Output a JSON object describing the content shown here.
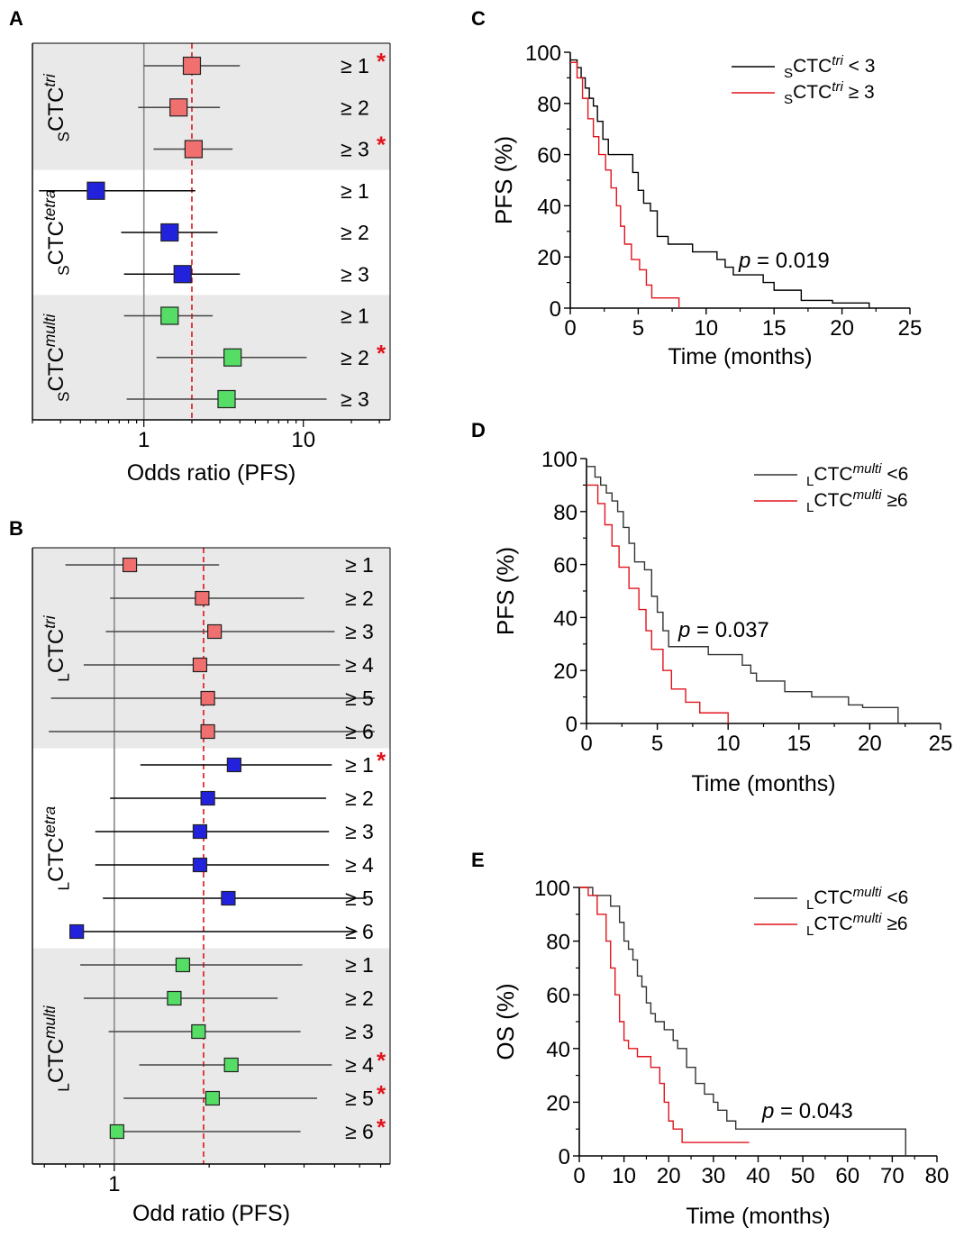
{
  "chart_data": [
    {
      "panel": "A",
      "type": "forest",
      "xlabel": "Odds ratio (PFS)",
      "xscale": "log",
      "xlim": [
        0.2,
        35
      ],
      "xticks": [
        "1",
        "10"
      ],
      "reference_line": 1,
      "pooled_line": 2.0,
      "groups": [
        {
          "prefix": "S",
          "name": "CTC",
          "sup": "tri",
          "color": "#f07070",
          "shaded": true,
          "rows": [
            {
              "threshold": "≥ 1",
              "or": 2.0,
              "low": 1.0,
              "high": 4.0,
              "significant": true
            },
            {
              "threshold": "≥ 2",
              "or": 1.65,
              "low": 0.92,
              "high": 3.0,
              "significant": false
            },
            {
              "threshold": "≥ 3",
              "or": 2.05,
              "low": 1.15,
              "high": 3.6,
              "significant": true
            }
          ]
        },
        {
          "prefix": "S",
          "name": "CTC",
          "sup": "tetra",
          "color": "#2222dd",
          "shaded": false,
          "rows": [
            {
              "threshold": "≥ 1",
              "or": 0.5,
              "low": 0.22,
              "high": 2.1,
              "significant": false
            },
            {
              "threshold": "≥ 2",
              "or": 1.45,
              "low": 0.72,
              "high": 2.9,
              "significant": false
            },
            {
              "threshold": "≥ 3",
              "or": 1.75,
              "low": 0.75,
              "high": 4.0,
              "significant": false
            }
          ]
        },
        {
          "prefix": "S",
          "name": "CTC",
          "sup": "multi",
          "color": "#55dd66",
          "shaded": true,
          "rows": [
            {
              "threshold": "≥ 1",
              "or": 1.45,
              "low": 0.75,
              "high": 2.7,
              "significant": false
            },
            {
              "threshold": "≥ 2",
              "or": 3.6,
              "low": 1.2,
              "high": 10.5,
              "significant": true
            },
            {
              "threshold": "≥ 3",
              "or": 3.3,
              "low": 0.78,
              "high": 14.0,
              "significant": false
            }
          ]
        }
      ]
    },
    {
      "panel": "B",
      "type": "forest",
      "xlabel": "Odd ratio (PFS)",
      "xscale": "log",
      "xlim": [
        0.55,
        7.5
      ],
      "xticks": [
        "1"
      ],
      "reference_line": 1,
      "pooled_line": 1.92,
      "groups": [
        {
          "prefix": "L",
          "name": "CTC",
          "sup": "tri",
          "color": "#f07070",
          "shaded": true,
          "rows": [
            {
              "threshold": "≥ 1",
              "or": 1.12,
              "low": 0.7,
              "high": 2.15,
              "significant": false
            },
            {
              "threshold": "≥ 2",
              "or": 1.9,
              "low": 0.97,
              "high": 4.0,
              "significant": false
            },
            {
              "threshold": "≥ 3",
              "or": 2.08,
              "low": 0.94,
              "high": 5.0,
              "significant": false
            },
            {
              "threshold": "≥ 4",
              "or": 1.87,
              "low": 0.8,
              "high": 5.2,
              "significant": false
            },
            {
              "threshold": "≥ 5",
              "or": 1.98,
              "low": 0.63,
              "high": 6.7,
              "significant": false
            },
            {
              "threshold": "≥ 6",
              "or": 1.98,
              "low": 0.62,
              "high": 6.7,
              "significant": false
            }
          ]
        },
        {
          "prefix": "L",
          "name": "CTC",
          "sup": "tetra",
          "color": "#2222dd",
          "shaded": false,
          "rows": [
            {
              "threshold": "≥ 1",
              "or": 2.4,
              "low": 1.21,
              "high": 4.9,
              "significant": true
            },
            {
              "threshold": "≥ 2",
              "or": 1.98,
              "low": 0.97,
              "high": 4.7,
              "significant": false
            },
            {
              "threshold": "≥ 3",
              "or": 1.87,
              "low": 0.87,
              "high": 4.8,
              "significant": false
            },
            {
              "threshold": "≥ 4",
              "or": 1.87,
              "low": 0.87,
              "high": 4.8,
              "significant": false
            },
            {
              "threshold": "≥ 5",
              "or": 2.3,
              "low": 0.92,
              "high": 6.3,
              "significant": false
            },
            {
              "threshold": "≥ 6",
              "or": 0.76,
              "low": 0.76,
              "high": 5.9,
              "significant": false
            }
          ]
        },
        {
          "prefix": "L",
          "name": "CTC",
          "sup": "multi",
          "color": "#55dd66",
          "shaded": true,
          "rows": [
            {
              "threshold": "≥ 1",
              "or": 1.65,
              "low": 0.78,
              "high": 3.95,
              "significant": false
            },
            {
              "threshold": "≥ 2",
              "or": 1.55,
              "low": 0.8,
              "high": 3.3,
              "significant": false
            },
            {
              "threshold": "≥ 3",
              "or": 1.85,
              "low": 0.96,
              "high": 3.9,
              "significant": false
            },
            {
              "threshold": "≥ 4",
              "or": 2.35,
              "low": 1.2,
              "high": 4.9,
              "significant": true
            },
            {
              "threshold": "≥ 5",
              "or": 2.05,
              "low": 1.07,
              "high": 4.4,
              "significant": true
            },
            {
              "threshold": "≥ 6",
              "or": 1.02,
              "low": 1.02,
              "high": 3.9,
              "significant": true
            }
          ]
        }
      ]
    },
    {
      "panel": "C",
      "type": "line",
      "subtype": "kaplan-meier",
      "xlabel": "Time  (months)",
      "ylabel": "PFS (%)",
      "xlim": [
        0,
        25
      ],
      "ylim": [
        0,
        100
      ],
      "xticks": [
        0,
        5,
        10,
        15,
        20,
        25
      ],
      "yticks": [
        0,
        20,
        40,
        60,
        80,
        100
      ],
      "annotation": {
        "p": "p",
        "value": " = 0.019"
      },
      "series": [
        {
          "prefix": "S",
          "name": "CTC",
          "sup": "tri",
          "rel": " < 3",
          "color": "#000000",
          "x": [
            0,
            0.5,
            0.5,
            0.8,
            0.8,
            1.1,
            1.1,
            1.4,
            1.4,
            1.7,
            1.7,
            2.0,
            2.0,
            2.4,
            2.4,
            2.8,
            2.8,
            3.3,
            3.3,
            4.6,
            4.6,
            5.0,
            5.0,
            5.4,
            5.4,
            5.9,
            5.9,
            6.4,
            6.4,
            7.2,
            7.2,
            9.0,
            9.0,
            10.8,
            10.8,
            11.4,
            11.4,
            12.0,
            12.0,
            14.2,
            14.2,
            15.0,
            15.0,
            17.0,
            17.0,
            19.3,
            19.3,
            22.0,
            22.0
          ],
          "y": [
            97,
            97,
            94,
            94,
            90,
            90,
            86,
            86,
            82,
            82,
            79,
            79,
            73,
            73,
            66,
            66,
            60,
            60,
            60,
            60,
            53,
            53,
            46,
            46,
            41,
            41,
            38,
            38,
            28,
            28,
            25,
            25,
            22,
            22,
            19,
            19,
            16,
            16,
            13,
            13,
            10,
            10,
            7,
            7,
            3,
            3,
            2,
            2,
            0
          ]
        },
        {
          "prefix": "S",
          "name": "CTC",
          "sup": "tri",
          "rel": " ≥ 3",
          "color": "#e0141c",
          "x": [
            0,
            0.5,
            0.5,
            0.9,
            0.9,
            1.3,
            1.3,
            1.7,
            1.7,
            2.1,
            2.1,
            2.6,
            2.6,
            3.0,
            3.0,
            3.4,
            3.4,
            3.7,
            3.7,
            4.0,
            4.0,
            4.5,
            4.5,
            5.1,
            5.1,
            5.6,
            5.6,
            6.0,
            6.0,
            6.3,
            6.3,
            8.0,
            8.0
          ],
          "y": [
            96,
            96,
            90,
            90,
            82,
            82,
            74,
            74,
            67,
            67,
            60,
            60,
            54,
            54,
            47,
            47,
            40,
            40,
            32,
            32,
            25,
            25,
            19,
            19,
            15,
            15,
            9,
            9,
            4,
            4,
            4,
            4,
            0
          ]
        }
      ]
    },
    {
      "panel": "D",
      "type": "line",
      "subtype": "kaplan-meier",
      "xlabel": "Time (months)",
      "ylabel": "PFS (%)",
      "xlim": [
        0,
        25
      ],
      "ylim": [
        0,
        100
      ],
      "xticks": [
        0,
        5,
        10,
        15,
        20,
        25
      ],
      "yticks": [
        0,
        20,
        40,
        60,
        80,
        100
      ],
      "annotation": {
        "p": "p",
        "value": " = 0.037"
      },
      "series": [
        {
          "prefix": "L",
          "name": "CTC",
          "sup": "multi",
          "rel": " <6",
          "color": "#333333",
          "x": [
            0,
            0.6,
            0.6,
            1.0,
            1.0,
            1.4,
            1.4,
            1.8,
            1.8,
            2.2,
            2.2,
            2.6,
            2.6,
            3.0,
            3.0,
            3.4,
            3.4,
            4.1,
            4.1,
            4.6,
            4.6,
            5.0,
            5.0,
            5.4,
            5.4,
            5.8,
            5.8,
            8.6,
            8.6,
            11.0,
            11.0,
            11.6,
            11.6,
            12.0,
            12.0,
            13.0,
            13.0,
            14.0,
            14.0,
            15.9,
            15.9,
            17.0,
            17.0,
            18.5,
            18.5,
            19.5,
            19.5,
            21.0,
            21.0,
            22.0,
            22.0
          ],
          "y": [
            97,
            97,
            93,
            93,
            90,
            90,
            87,
            87,
            84,
            84,
            80,
            80,
            74,
            74,
            68,
            68,
            61,
            61,
            58,
            58,
            48,
            48,
            42,
            42,
            35,
            35,
            29,
            29,
            26,
            26,
            22,
            22,
            19,
            19,
            16,
            16,
            16,
            16,
            12,
            12,
            10,
            10,
            10,
            10,
            7,
            7,
            6,
            6,
            6,
            6,
            0
          ]
        },
        {
          "prefix": "L",
          "name": "CTC",
          "sup": "multi",
          "rel": " ≥6",
          "color": "#e0141c",
          "x": [
            0,
            0.8,
            0.8,
            1.3,
            1.3,
            1.8,
            1.8,
            2.3,
            2.3,
            3.0,
            3.0,
            3.7,
            3.7,
            4.2,
            4.2,
            4.6,
            4.6,
            5.4,
            5.4,
            6.0,
            6.0,
            7.0,
            7.0,
            8.0,
            8.0,
            10.0,
            10.0
          ],
          "y": [
            90,
            90,
            83,
            83,
            75,
            75,
            67,
            67,
            59,
            59,
            51,
            51,
            43,
            43,
            35,
            35,
            28,
            28,
            20,
            20,
            13,
            13,
            8,
            8,
            4,
            4,
            0
          ]
        }
      ]
    },
    {
      "panel": "E",
      "type": "line",
      "subtype": "kaplan-meier",
      "xlabel": "Time (months)",
      "ylabel": "OS (%)",
      "xlim": [
        0,
        80
      ],
      "ylim": [
        0,
        100
      ],
      "xticks": [
        0,
        10,
        20,
        30,
        40,
        50,
        60,
        70,
        80
      ],
      "yticks": [
        0,
        20,
        40,
        60,
        80,
        100
      ],
      "annotation": {
        "p": "p",
        "value": " = 0.043"
      },
      "series": [
        {
          "prefix": "L",
          "name": "CTC",
          "sup": "multi",
          "rel": " <6",
          "color": "#333333",
          "x": [
            0,
            3,
            3,
            7,
            7,
            9,
            9,
            10,
            10,
            11,
            11,
            12,
            12,
            13,
            13,
            14,
            14,
            15,
            15,
            16,
            16,
            17,
            17,
            19,
            19,
            21,
            21,
            22,
            22,
            24,
            24,
            26,
            26,
            28,
            28,
            30,
            30,
            31,
            31,
            33,
            33,
            34,
            34,
            35,
            35,
            36,
            36,
            37,
            37,
            73,
            73
          ],
          "y": [
            100,
            100,
            97,
            97,
            93,
            93,
            87,
            87,
            80,
            80,
            77,
            77,
            73,
            73,
            67,
            67,
            63,
            63,
            57,
            57,
            53,
            53,
            50,
            50,
            47,
            47,
            43,
            43,
            40,
            40,
            33,
            33,
            27,
            27,
            23,
            23,
            20,
            20,
            17,
            17,
            13,
            13,
            13,
            13,
            10,
            10,
            10,
            10,
            10,
            10,
            0
          ]
        },
        {
          "prefix": "L",
          "name": "CTC",
          "sup": "multi",
          "rel": " ≥6",
          "color": "#e0141c",
          "x": [
            0,
            2,
            2,
            4,
            4,
            6,
            6,
            7,
            7,
            8,
            8,
            9,
            9,
            10,
            10,
            11,
            11,
            13,
            13,
            16,
            16,
            18,
            18,
            19,
            19,
            20,
            20,
            21,
            21,
            23,
            23,
            38
          ],
          "y": [
            100,
            100,
            97,
            97,
            90,
            90,
            80,
            80,
            70,
            70,
            60,
            60,
            50,
            50,
            43,
            43,
            40,
            40,
            37,
            37,
            33,
            33,
            27,
            27,
            20,
            20,
            13,
            13,
            10,
            10,
            5,
            5
          ]
        }
      ]
    }
  ]
}
